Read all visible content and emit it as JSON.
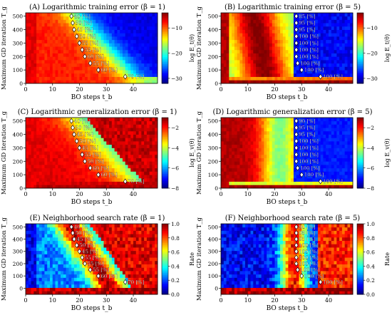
{
  "chart_data": [
    {
      "type": "heatmap",
      "panel": "A",
      "title": "(A) Logarithmic training error (β = 1)",
      "xlabel": "BO steps t_b",
      "ylabel": "Maximum GD iteration T_g",
      "colorbar_label": "log E_t(θ)",
      "colormap": "jet",
      "xlim": [
        0,
        49
      ],
      "ylim": [
        0,
        525
      ],
      "xticks": [
        "0",
        "10",
        "20",
        "30",
        "40"
      ],
      "yticks": [
        "0",
        "100",
        "200",
        "300",
        "400",
        "500"
      ],
      "colorbar_range": [
        -32,
        -4
      ],
      "colorbar_ticks": [
        "−10",
        "−20",
        "−30"
      ],
      "markers": [
        {
          "x": 17,
          "y": 500,
          "label": "40 [%]"
        },
        {
          "x": 17.5,
          "y": 450,
          "label": "50 [%]"
        },
        {
          "x": 18,
          "y": 400,
          "label": "45 [%]"
        },
        {
          "x": 19,
          "y": 350,
          "label": "50 [%]"
        },
        {
          "x": 20,
          "y": 300,
          "label": "55 [%]"
        },
        {
          "x": 21,
          "y": 250,
          "label": "55 [%]"
        },
        {
          "x": 22,
          "y": 200,
          "label": "60 [%]"
        },
        {
          "x": 24,
          "y": 150,
          "label": "55 [%]"
        },
        {
          "x": 27,
          "y": 100,
          "label": "60 [%]"
        },
        {
          "x": 37,
          "y": 50,
          "label": "70 [%]"
        }
      ]
    },
    {
      "type": "heatmap",
      "panel": "B",
      "title": "(B) Logarithmic training error (β = 5)",
      "xlabel": "BO steps t_b",
      "ylabel": "Maximum GD iteration T_g",
      "colorbar_label": "log E_t(θ)",
      "colormap": "jet",
      "xlim": [
        0,
        49
      ],
      "ylim": [
        0,
        525
      ],
      "xticks": [
        "0",
        "10",
        "20",
        "30",
        "40"
      ],
      "yticks": [
        "0",
        "100",
        "200",
        "300",
        "400",
        "500"
      ],
      "colorbar_range": [
        -32,
        -4
      ],
      "colorbar_ticks": [
        "−10",
        "−20",
        "−30"
      ],
      "markers": [
        {
          "x": 28,
          "y": 500,
          "label": "85 [%]"
        },
        {
          "x": 28,
          "y": 450,
          "label": "95 [%]"
        },
        {
          "x": 28,
          "y": 400,
          "label": "95 [%]"
        },
        {
          "x": 28,
          "y": 350,
          "label": "100 [%]"
        },
        {
          "x": 28,
          "y": 300,
          "label": "100 [%]"
        },
        {
          "x": 28,
          "y": 250,
          "label": "100 [%]"
        },
        {
          "x": 28,
          "y": 200,
          "label": "100 [%]"
        },
        {
          "x": 28.5,
          "y": 150,
          "label": "100 [%]"
        },
        {
          "x": 30,
          "y": 100,
          "label": "100 [%]"
        },
        {
          "x": 37,
          "y": 50,
          "label": "100 [%]"
        }
      ]
    },
    {
      "type": "heatmap",
      "panel": "C",
      "title": "(C) Logarithmic generalization error (β = 1)",
      "xlabel": "BO steps t_b",
      "ylabel": "Maximum GD iteration T_g",
      "colorbar_label": "log E_v(θ)",
      "colormap": "jet",
      "xlim": [
        0,
        49
      ],
      "ylim": [
        0,
        525
      ],
      "xticks": [
        "0",
        "10",
        "20",
        "30",
        "40"
      ],
      "yticks": [
        "0",
        "100",
        "200",
        "300",
        "400",
        "500"
      ],
      "colorbar_range": [
        -8,
        -1
      ],
      "colorbar_ticks": [
        "−2",
        "−4",
        "−6",
        "−8"
      ],
      "markers": [
        {
          "x": 17,
          "y": 500,
          "label": "40 [%]"
        },
        {
          "x": 17.5,
          "y": 450,
          "label": "50 [%]"
        },
        {
          "x": 18,
          "y": 400,
          "label": "45 [%]"
        },
        {
          "x": 19,
          "y": 350,
          "label": "50 [%]"
        },
        {
          "x": 20,
          "y": 300,
          "label": "45 [%]"
        },
        {
          "x": 21,
          "y": 250,
          "label": "55 [%]"
        },
        {
          "x": 22,
          "y": 200,
          "label": "50 [%]"
        },
        {
          "x": 24,
          "y": 150,
          "label": "60 [%]"
        },
        {
          "x": 27,
          "y": 100,
          "label": "60 [%]"
        },
        {
          "x": 37,
          "y": 50,
          "label": "70 [%]"
        }
      ]
    },
    {
      "type": "heatmap",
      "panel": "D",
      "title": "(D) Logarithmic generalization error (β = 5)",
      "xlabel": "BO steps t_b",
      "ylabel": "Maximum GD iteration T_g",
      "colorbar_label": "log E_v(θ)",
      "colormap": "jet",
      "xlim": [
        0,
        49
      ],
      "ylim": [
        0,
        525
      ],
      "xticks": [
        "0",
        "10",
        "20",
        "30",
        "40"
      ],
      "yticks": [
        "0",
        "100",
        "200",
        "300",
        "400",
        "500"
      ],
      "colorbar_range": [
        -8,
        -1
      ],
      "colorbar_ticks": [
        "−2",
        "−4",
        "−6",
        "−8"
      ],
      "markers": [
        {
          "x": 28,
          "y": 500,
          "label": "90 [%]"
        },
        {
          "x": 28,
          "y": 450,
          "label": "95 [%]"
        },
        {
          "x": 28,
          "y": 400,
          "label": "95 [%]"
        },
        {
          "x": 28,
          "y": 350,
          "label": "100 [%]"
        },
        {
          "x": 28,
          "y": 300,
          "label": "100 [%]"
        },
        {
          "x": 28,
          "y": 250,
          "label": "100 [%]"
        },
        {
          "x": 28,
          "y": 200,
          "label": "100 [%]"
        },
        {
          "x": 28.5,
          "y": 150,
          "label": "100 [%]"
        },
        {
          "x": 30,
          "y": 100,
          "label": "100 [%]"
        },
        {
          "x": 37,
          "y": 50,
          "label": "100 [%]"
        }
      ]
    },
    {
      "type": "heatmap",
      "panel": "E",
      "title": "(E) Neighborhood search rate (β = 1)",
      "xlabel": "BO steps t_b",
      "ylabel": "Maximum GD iteration T_g",
      "colorbar_label": "Rate",
      "colormap": "jet",
      "xlim": [
        0,
        49
      ],
      "ylim": [
        -50,
        525
      ],
      "xticks": [
        "0",
        "10",
        "20",
        "30",
        "40"
      ],
      "yticks": [
        "0",
        "100",
        "200",
        "300",
        "400",
        "500"
      ],
      "colorbar_range": [
        0,
        1
      ],
      "colorbar_ticks": [
        "0.0",
        "0.2",
        "0.4",
        "0.6",
        "0.8",
        "1.0"
      ],
      "markers": [
        {
          "x": 17,
          "y": 500,
          "label": "40 [%]"
        },
        {
          "x": 17.5,
          "y": 450,
          "label": "50 [%]"
        },
        {
          "x": 18,
          "y": 400,
          "label": "45 [%]"
        },
        {
          "x": 19,
          "y": 350,
          "label": "50 [%]"
        },
        {
          "x": 20,
          "y": 300,
          "label": "45 [%]"
        },
        {
          "x": 21,
          "y": 250,
          "label": "55 [%]"
        },
        {
          "x": 22,
          "y": 200,
          "label": "55 [%]"
        },
        {
          "x": 24,
          "y": 150,
          "label": "55 [%]"
        },
        {
          "x": 27,
          "y": 100,
          "label": "60 [%]"
        },
        {
          "x": 37,
          "y": 50,
          "label": "70 [%]"
        }
      ]
    },
    {
      "type": "heatmap",
      "panel": "F",
      "title": "(F) Neighborhood search rate (β = 5)",
      "xlabel": "BO steps t_b",
      "ylabel": "Maximum GD iteration T_g",
      "colorbar_label": "Rate",
      "colormap": "jet",
      "xlim": [
        0,
        49
      ],
      "ylim": [
        -50,
        525
      ],
      "xticks": [
        "0",
        "10",
        "20",
        "30",
        "40"
      ],
      "yticks": [
        "0",
        "100",
        "200",
        "300",
        "400",
        "500"
      ],
      "colorbar_range": [
        0,
        1
      ],
      "colorbar_ticks": [
        "0.0",
        "0.2",
        "0.4",
        "0.6",
        "0.8",
        "1.0"
      ],
      "markers": [
        {
          "x": 28,
          "y": 500,
          "label": "90 [%]"
        },
        {
          "x": 28,
          "y": 450,
          "label": "95 [%]"
        },
        {
          "x": 28,
          "y": 400,
          "label": "95 [%]"
        },
        {
          "x": 28,
          "y": 350,
          "label": "100 [%]"
        },
        {
          "x": 28,
          "y": 300,
          "label": "100 [%]"
        },
        {
          "x": 28,
          "y": 250,
          "label": "100 [%]"
        },
        {
          "x": 28,
          "y": 200,
          "label": "100 [%]"
        },
        {
          "x": 28.5,
          "y": 150,
          "label": "100 [%]"
        },
        {
          "x": 30,
          "y": 100,
          "label": "100 [%]"
        },
        {
          "x": 37,
          "y": 50,
          "label": "100 [%]"
        }
      ]
    }
  ]
}
